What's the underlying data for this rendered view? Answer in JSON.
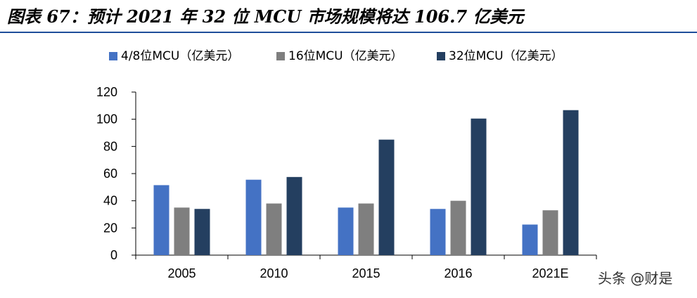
{
  "title": "图表 67：预计 2021 年 32 位 MCU 市场规模将达 106.7 亿美元",
  "watermark": "头条 @财是",
  "colors": {
    "series_4_8": "#4472c4",
    "series_16": "#7f7f7f",
    "series_32": "#243f60",
    "title_rule": "#1f4e9a"
  },
  "chart_data": {
    "type": "bar",
    "categories": [
      "2005",
      "2010",
      "2015",
      "2016",
      "2021E"
    ],
    "series": [
      {
        "name": "4/8位MCU（亿美元）",
        "values": [
          51.5,
          55.5,
          35,
          34,
          22.5
        ]
      },
      {
        "name": "16位MCU（亿美元）",
        "values": [
          35,
          38,
          38,
          40,
          33
        ]
      },
      {
        "name": "32位MCU（亿美元）",
        "values": [
          34,
          57.5,
          85,
          100.5,
          106.7
        ]
      }
    ],
    "ylim": [
      0,
      120
    ],
    "yticks": [
      0,
      20,
      40,
      60,
      80,
      100,
      120
    ],
    "legend_position": "top",
    "grid": false
  }
}
